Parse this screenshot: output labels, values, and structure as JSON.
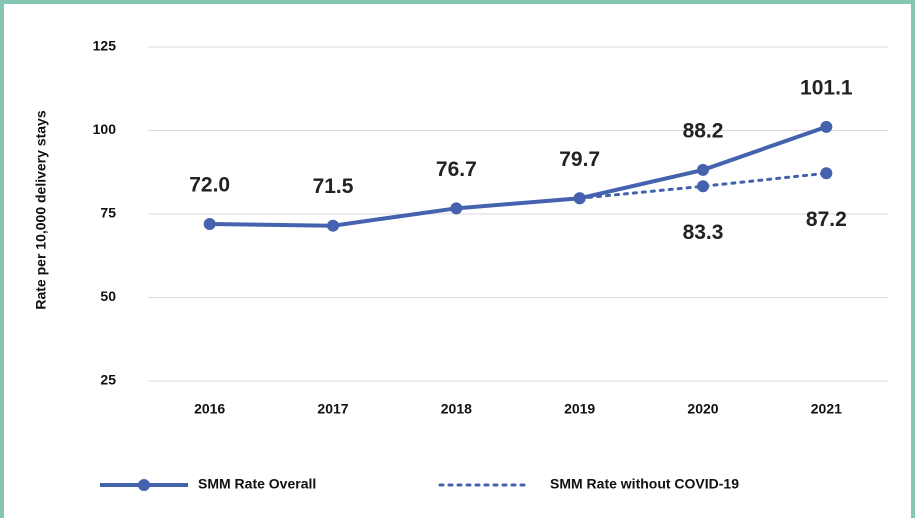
{
  "chart_data": {
    "type": "line",
    "y_label": "Rate per 10,000 delivery stays",
    "categories": [
      "2016",
      "2017",
      "2018",
      "2019",
      "2020",
      "2021"
    ],
    "series": [
      {
        "name": "SMM Rate Overall",
        "color": "#4462ae",
        "style": "solid",
        "values": [
          72.0,
          71.5,
          76.7,
          79.7,
          88.2,
          101.1
        ],
        "value_labels": [
          "72.0",
          "71.5",
          "76.7",
          "79.7",
          "88.2",
          "101.1"
        ]
      },
      {
        "name": "SMM Rate without COVID-19",
        "color": "#4462ae",
        "style": "dotted",
        "values": [
          null,
          null,
          null,
          79.7,
          83.3,
          87.2
        ],
        "value_labels": [
          null,
          null,
          null,
          null,
          "83.3",
          "87.2"
        ]
      }
    ],
    "ylim": [
      25,
      125
    ],
    "yticks": [
      25,
      50,
      75,
      100,
      125
    ],
    "grid": true,
    "legend": "bottom"
  }
}
